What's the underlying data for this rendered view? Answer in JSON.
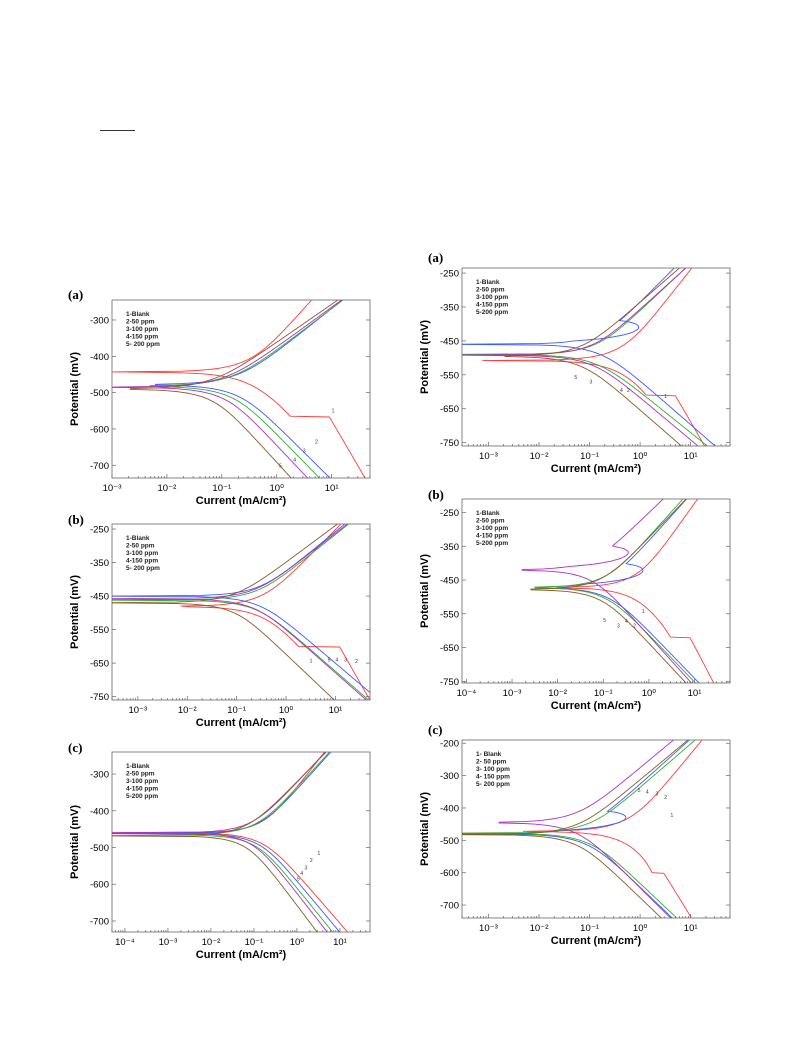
{
  "colors": {
    "blank": "#ff3b3b",
    "ppm50": "#3b5bff",
    "ppm100": "#2fb02f",
    "ppm150": "#b030c0",
    "ppm200": "#8b5a2b",
    "axis": "#666666"
  },
  "chart_data": [
    {
      "id": "L-a",
      "panel_label": "(a)",
      "type": "line",
      "xlabel": "Current (mA/cm²)",
      "ylabel": "Potential (mV)",
      "x_scale": "log",
      "xlim": [
        0.001,
        50
      ],
      "ylim": [
        -735,
        -245
      ],
      "x_ticks": [
        {
          "v": 0.001,
          "t": "10⁻³"
        },
        {
          "v": 0.01,
          "t": "10⁻²"
        },
        {
          "v": 0.1,
          "t": "10⁻¹"
        },
        {
          "v": 1,
          "t": "10⁰"
        },
        {
          "v": 10,
          "t": "10¹"
        }
      ],
      "y_ticks": [
        -300,
        -400,
        -500,
        -600,
        -700
      ],
      "legend": [
        "1-Blank",
        "2-50 ppm",
        "3-100 ppm",
        "4-150 ppm",
        "5- 200 ppm"
      ],
      "series": [
        {
          "name": "1-Blank",
          "color": "#ff3b3b",
          "ecorr": -442,
          "i0": 0.3,
          "ba": 170,
          "bc": 140,
          "ilim": 9,
          "ilimv": -565,
          "label_at": [
            10,
            -555
          ]
        },
        {
          "name": "2-50 ppm",
          "color": "#3b5bff",
          "ecorr": -478,
          "i0": 0.18,
          "ba": 120,
          "bc": 150,
          "label_at": [
            5,
            -640
          ]
        },
        {
          "name": "3-100 ppm",
          "color": "#2fb02f",
          "ecorr": -482,
          "i0": 0.14,
          "ba": 115,
          "bc": 155,
          "label_at": [
            3,
            -665
          ]
        },
        {
          "name": "4-150 ppm",
          "color": "#b030c0",
          "ecorr": -485,
          "i0": 0.1,
          "ba": 110,
          "bc": 160,
          "label_at": [
            2,
            -690
          ]
        },
        {
          "name": "5-200 ppm",
          "color": "#8b5a2b",
          "ecorr": -490,
          "i0": 0.06,
          "ba": 105,
          "bc": 165,
          "label_at": [
            1.1,
            -706
          ]
        }
      ]
    },
    {
      "id": "L-b",
      "panel_label": "(b)",
      "type": "line",
      "xlabel": "Current (mA/cm²)",
      "ylabel": "Potential (mV)",
      "x_scale": "log",
      "xlim": [
        0.0003,
        50
      ],
      "ylim": [
        -760,
        -235
      ],
      "x_ticks": [
        {
          "v": 0.001,
          "t": "10⁻³"
        },
        {
          "v": 0.01,
          "t": "10⁻²"
        },
        {
          "v": 0.1,
          "t": "10⁻¹"
        },
        {
          "v": 1,
          "t": "10⁰"
        },
        {
          "v": 10,
          "t": "10¹"
        }
      ],
      "y_ticks": [
        -250,
        -350,
        -450,
        -550,
        -650,
        -750
      ],
      "legend": [
        "1-Blank",
        "2-50 ppm",
        "3-100 ppm",
        "4-150 ppm",
        "5- 200 ppm"
      ],
      "series": [
        {
          "name": "1-Blank",
          "color": "#ff3b3b",
          "ecorr": -480,
          "i0": 0.3,
          "ba": 150,
          "bc": 140,
          "ilim": 12,
          "ilimv": -600,
          "label_at": [
            3,
            -648
          ]
        },
        {
          "name": "2-50 ppm",
          "color": "#3b5bff",
          "ecorr": -450,
          "i0": 0.25,
          "ba": 120,
          "bc": 125,
          "label_at": [
            25,
            -650
          ]
        },
        {
          "name": "3-100 ppm",
          "color": "#2fb02f",
          "ecorr": -462,
          "i0": 0.22,
          "ba": 118,
          "bc": 128,
          "label_at": [
            15,
            -645
          ]
        },
        {
          "name": "4-150 ppm",
          "color": "#b030c0",
          "ecorr": -458,
          "i0": 0.2,
          "ba": 115,
          "bc": 130,
          "label_at": [
            10,
            -645
          ]
        },
        {
          "name": "5-200 ppm",
          "color": "#8b5a2b",
          "ecorr": -470,
          "i0": 0.08,
          "ba": 110,
          "bc": 140,
          "label_at": [
            7,
            -645
          ]
        }
      ]
    },
    {
      "id": "L-c",
      "panel_label": "(c)",
      "type": "line",
      "xlabel": "Current (mA/cm²)",
      "ylabel": "Potential (mV)",
      "x_scale": "log",
      "xlim": [
        5e-05,
        50
      ],
      "ylim": [
        -730,
        -240
      ],
      "x_ticks": [
        {
          "v": 0.0001,
          "t": "10⁻⁴"
        },
        {
          "v": 0.001,
          "t": "10⁻³"
        },
        {
          "v": 0.01,
          "t": "10⁻²"
        },
        {
          "v": 0.1,
          "t": "10⁻¹"
        },
        {
          "v": 1,
          "t": "10⁰"
        },
        {
          "v": 10,
          "t": "10¹"
        }
      ],
      "y_ticks": [
        -300,
        -400,
        -500,
        -600,
        -700
      ],
      "legend": [
        "1-Blank",
        "2-50 ppm",
        "3-100 ppm",
        "4-150 ppm",
        "5-200 ppm"
      ],
      "series": [
        {
          "name": "1-Blank",
          "color": "#ff3b3b",
          "ecorr": -460,
          "i0": 0.15,
          "ba": 150,
          "bc": 135,
          "label_at": [
            3,
            -520
          ]
        },
        {
          "name": "2-50 ppm",
          "color": "#3b5bff",
          "ecorr": -462,
          "i0": 0.12,
          "ba": 130,
          "bc": 140,
          "label_at": [
            2,
            -540
          ]
        },
        {
          "name": "3-100 ppm",
          "color": "#2fb02f",
          "ecorr": -465,
          "i0": 0.1,
          "ba": 128,
          "bc": 145,
          "label_at": [
            1.5,
            -560
          ]
        },
        {
          "name": "4-150 ppm",
          "color": "#b030c0",
          "ecorr": -460,
          "i0": 0.08,
          "ba": 125,
          "bc": 150,
          "label_at": [
            1.2,
            -575
          ]
        },
        {
          "name": "5-200 ppm",
          "color": "#8b5a2b",
          "ecorr": -468,
          "i0": 0.06,
          "ba": 120,
          "bc": 155,
          "label_at": [
            1.0,
            -590
          ]
        }
      ]
    },
    {
      "id": "R-a",
      "panel_label": "(a)",
      "type": "line",
      "xlabel": "Current (mA/cm²)",
      "ylabel": "Potential (mV)",
      "x_scale": "log",
      "xlim": [
        0.0003,
        60
      ],
      "ylim": [
        -760,
        -235
      ],
      "x_ticks": [
        {
          "v": 0.001,
          "t": "10⁻³"
        },
        {
          "v": 0.01,
          "t": "10⁻²"
        },
        {
          "v": 0.1,
          "t": "10⁻¹"
        },
        {
          "v": 1,
          "t": "10⁰"
        },
        {
          "v": 10,
          "t": "10¹"
        }
      ],
      "y_ticks": [
        -250,
        -350,
        -450,
        -550,
        -650,
        -750
      ],
      "legend": [
        "1-Blank",
        "2-50 ppm",
        "3-100 ppm",
        "4-150 ppm",
        "5-200 ppm"
      ],
      "series": [
        {
          "name": "1-Blank",
          "color": "#ff3b3b",
          "ecorr": -505,
          "i0": 0.4,
          "ba": 190,
          "bc": 150,
          "ilim": 5,
          "ilimv": -610,
          "label_at": [
            3,
            -618
          ]
        },
        {
          "name": "2-50 ppm",
          "color": "#3b5bff",
          "ecorr": -460,
          "i0": 0.15,
          "ba": 150,
          "bc": 130,
          "loop": true,
          "label_at": [
            0.55,
            -600
          ]
        },
        {
          "name": "3-100 ppm",
          "color": "#2fb02f",
          "ecorr": -490,
          "i0": 0.12,
          "ba": 140,
          "bc": 120,
          "label_at": [
            0.1,
            -575
          ]
        },
        {
          "name": "4-150 ppm",
          "color": "#b030c0",
          "ecorr": -492,
          "i0": 0.1,
          "ba": 135,
          "bc": 125,
          "label_at": [
            0.4,
            -600
          ]
        },
        {
          "name": "5-200 ppm",
          "color": "#8b5a2b",
          "ecorr": -495,
          "i0": 0.06,
          "ba": 130,
          "bc": 130,
          "label_at": [
            0.05,
            -563
          ]
        }
      ]
    },
    {
      "id": "R-b",
      "panel_label": "(b)",
      "type": "line",
      "xlabel": "Current (mA/cm²)",
      "ylabel": "Potential (mV)",
      "x_scale": "log",
      "xlim": [
        8e-05,
        60
      ],
      "ylim": [
        -755,
        -210
      ],
      "x_ticks": [
        {
          "v": 0.0001,
          "t": "10⁻⁴"
        },
        {
          "v": 0.001,
          "t": "10⁻³"
        },
        {
          "v": 0.01,
          "t": "10⁻²"
        },
        {
          "v": 0.1,
          "t": "10⁻¹"
        },
        {
          "v": 1,
          "t": "10⁰"
        },
        {
          "v": 10,
          "t": "10¹"
        }
      ],
      "y_ticks": [
        -250,
        -350,
        -450,
        -550,
        -650,
        -750
      ],
      "legend": [
        "1-Blank",
        "2-50 ppm",
        "3-100 ppm",
        "4-150 ppm",
        "5-200 ppm"
      ],
      "series": [
        {
          "name": "1-Blank",
          "color": "#ff3b3b",
          "ecorr": -470,
          "i0": 0.5,
          "ba": 190,
          "bc": 150,
          "ilim": 8,
          "ilimv": -620,
          "label_at": [
            0.7,
            -548
          ]
        },
        {
          "name": "2-50 ppm",
          "color": "#3b5bff",
          "ecorr": -472,
          "i0": 0.12,
          "ba": 150,
          "bc": 140,
          "loop": true,
          "label_at": [
            0.45,
            -590
          ]
        },
        {
          "name": "3-100 ppm",
          "color": "#2fb02f",
          "ecorr": -472,
          "i0": 0.1,
          "ba": 150,
          "bc": 140,
          "label_at": [
            0.2,
            -590
          ]
        },
        {
          "name": "4-150 ppm",
          "color": "#b030c0",
          "ecorr": -420,
          "i0": 0.05,
          "ba": 130,
          "bc": 150,
          "loop": true,
          "label_at": [
            0.3,
            -578
          ]
        },
        {
          "name": "5-200 ppm",
          "color": "#8b5a2b",
          "ecorr": -478,
          "i0": 0.08,
          "ba": 140,
          "bc": 145,
          "label_at": [
            0.1,
            -575
          ]
        }
      ]
    },
    {
      "id": "R-c",
      "panel_label": "(c)",
      "type": "line",
      "xlabel": "Current (mA/cm²)",
      "ylabel": "Potential (mV)",
      "x_scale": "log",
      "xlim": [
        0.0003,
        60
      ],
      "ylim": [
        -740,
        -190
      ],
      "x_ticks": [
        {
          "v": 0.001,
          "t": "10⁻³"
        },
        {
          "v": 0.01,
          "t": "10⁻²"
        },
        {
          "v": 0.1,
          "t": "10⁻¹"
        },
        {
          "v": 1,
          "t": "10⁰"
        },
        {
          "v": 10,
          "t": "10¹"
        }
      ],
      "y_ticks": [
        -200,
        -300,
        -400,
        -500,
        -600,
        -700
      ],
      "legend": [
        "1- Blank",
        "2- 50 ppm",
        "3- 100 ppm",
        "4- 150 ppm",
        "5- 200 ppm"
      ],
      "series": [
        {
          "name": "1-Blank",
          "color": "#ff3b3b",
          "ecorr": -465,
          "i0": 0.6,
          "ba": 190,
          "bc": 150,
          "ilim": 3,
          "ilimv": -600,
          "label_at": [
            4,
            -428
          ]
        },
        {
          "name": "2-50 ppm",
          "color": "#3b5bff",
          "ecorr": -480,
          "i0": 0.08,
          "ba": 140,
          "bc": 150,
          "loop": true,
          "label_at": [
            3,
            -372
          ]
        },
        {
          "name": "3-100 ppm",
          "color": "#2fb02f",
          "ecorr": -478,
          "i0": 0.09,
          "ba": 135,
          "bc": 148,
          "label_at": [
            2,
            -362
          ]
        },
        {
          "name": "4-150 ppm",
          "color": "#b030c0",
          "ecorr": -445,
          "i0": 0.05,
          "ba": 130,
          "bc": 155,
          "label_at": [
            1.3,
            -355
          ]
        },
        {
          "name": "5-200 ppm",
          "color": "#8b5a2b",
          "ecorr": -482,
          "i0": 0.05,
          "ba": 130,
          "bc": 150,
          "label_at": [
            0.9,
            -350
          ]
        }
      ]
    }
  ]
}
